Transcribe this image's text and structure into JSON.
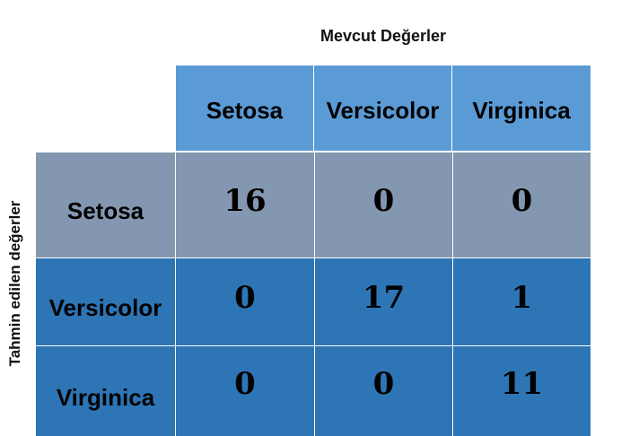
{
  "title": "Mevcut Değerler",
  "side_title": "Tahmin edilen değerler",
  "columns": [
    "Setosa",
    "Versicolor",
    "Virginica"
  ],
  "rows": [
    {
      "label": "Setosa",
      "values": [
        "16",
        "0",
        "0"
      ]
    },
    {
      "label": "Versicolor",
      "values": [
        "0",
        "17",
        "1"
      ]
    },
    {
      "label": "Virginica",
      "values": [
        "0",
        "0",
        "11"
      ]
    }
  ],
  "colors": {
    "header": "#5b9bd5",
    "row_gray": "#8497b0",
    "row_blue": "#2e75b6"
  }
}
